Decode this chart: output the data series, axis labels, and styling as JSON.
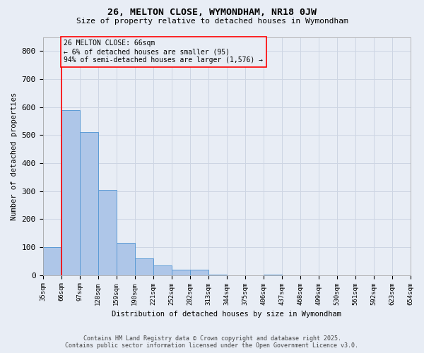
{
  "title1": "26, MELTON CLOSE, WYMONDHAM, NR18 0JW",
  "title2": "Size of property relative to detached houses in Wymondham",
  "xlabel": "Distribution of detached houses by size in Wymondham",
  "ylabel": "Number of detached properties",
  "annotation_line1": "26 MELTON CLOSE: 66sqm",
  "annotation_line2": "← 6% of detached houses are smaller (95)",
  "annotation_line3": "94% of semi-detached houses are larger (1,576) →",
  "footer1": "Contains HM Land Registry data © Crown copyright and database right 2025.",
  "footer2": "Contains public sector information licensed under the Open Government Licence v3.0.",
  "bar_heights": [
    100,
    590,
    510,
    305,
    115,
    60,
    35,
    20,
    20,
    1,
    0,
    0,
    1,
    0,
    0,
    0,
    0,
    0,
    0,
    0
  ],
  "bar_color": "#aec6e8",
  "bar_edge_color": "#5b9bd5",
  "grid_color": "#cdd5e3",
  "bg_color": "#e8edf5",
  "red_line_index": 1,
  "ylim": [
    0,
    850
  ],
  "yticks": [
    0,
    100,
    200,
    300,
    400,
    500,
    600,
    700,
    800
  ],
  "tick_labels": [
    "35sqm",
    "66sqm",
    "97sqm",
    "128sqm",
    "159sqm",
    "190sqm",
    "221sqm",
    "252sqm",
    "282sqm",
    "313sqm",
    "344sqm",
    "375sqm",
    "406sqm",
    "437sqm",
    "468sqm",
    "499sqm",
    "530sqm",
    "561sqm",
    "592sqm",
    "623sqm",
    "654sqm"
  ],
  "n_bars": 20
}
